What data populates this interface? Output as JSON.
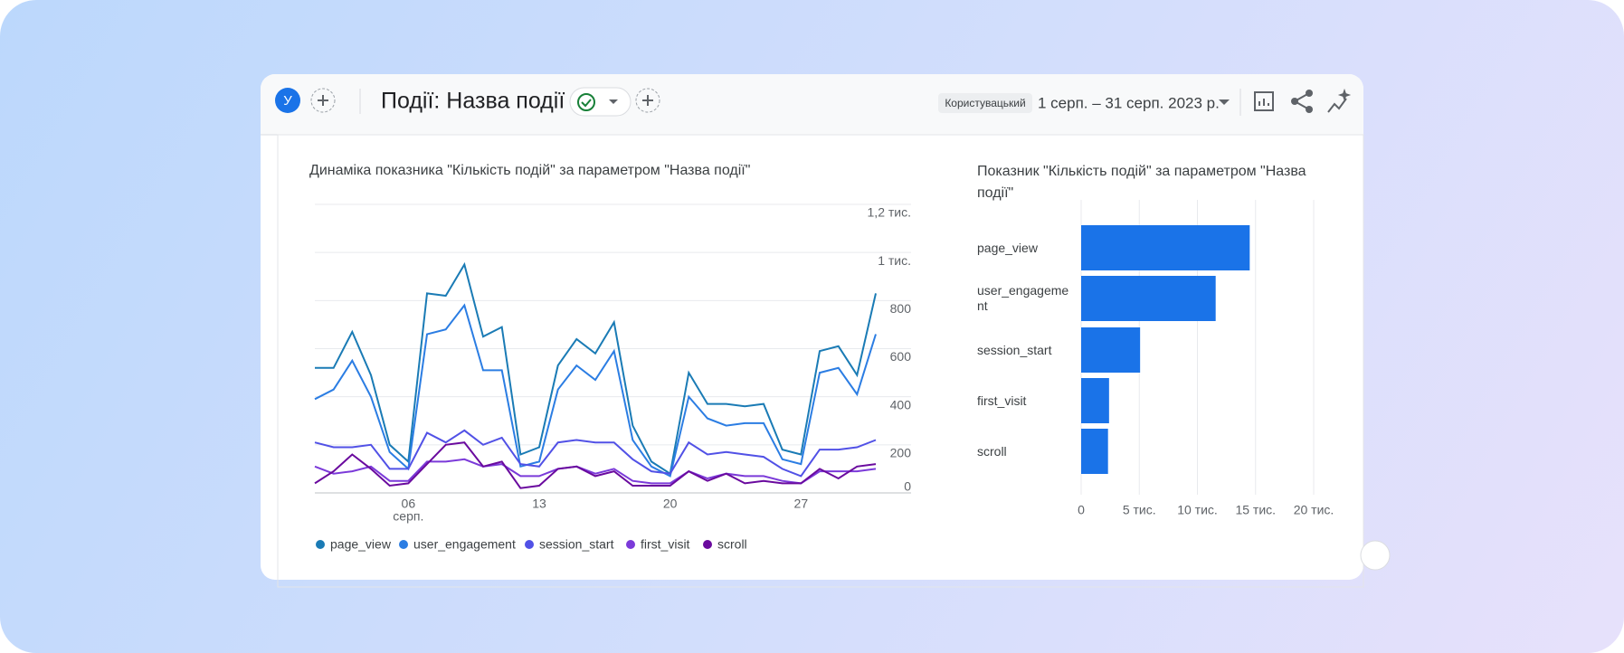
{
  "header": {
    "avatar": "У",
    "title": "Події: Назва події",
    "comparison_chip": "Користувацький",
    "date_range": "1 серп. – 31 серп. 2023 р."
  },
  "chart_data": [
    {
      "type": "line",
      "title": "Динаміка показника \"Кількість подій\" за параметром \"Назва події\"",
      "categories": [
        null,
        null,
        null,
        null,
        null,
        "06",
        null,
        null,
        null,
        null,
        null,
        null,
        "13",
        null,
        null,
        null,
        null,
        null,
        null,
        "20",
        null,
        null,
        null,
        null,
        null,
        null,
        "27",
        null,
        null,
        null,
        null
      ],
      "x_month_label": "серп.",
      "ylim": [
        0,
        1200
      ],
      "yticks": [
        0,
        200,
        400,
        600,
        800,
        {
          "value": 1000,
          "label": "1 тис."
        },
        {
          "value": 1200,
          "label": "1,2 тис."
        }
      ],
      "grid": true,
      "legend": "bottom",
      "series": [
        {
          "name": "page_view",
          "color": "#1a7bb5",
          "values": [
            520,
            520,
            670,
            490,
            200,
            130,
            830,
            820,
            950,
            650,
            690,
            160,
            190,
            530,
            640,
            580,
            710,
            280,
            130,
            80,
            500,
            370,
            370,
            360,
            370,
            180,
            160,
            590,
            610,
            490,
            830
          ]
        },
        {
          "name": "user_engagement",
          "color": "#2b7de3",
          "values": [
            390,
            430,
            550,
            400,
            170,
            100,
            660,
            680,
            780,
            510,
            510,
            110,
            130,
            430,
            530,
            470,
            590,
            220,
            110,
            70,
            400,
            310,
            280,
            290,
            290,
            140,
            120,
            500,
            520,
            410,
            660
          ]
        },
        {
          "name": "session_start",
          "color": "#5151e6",
          "values": [
            210,
            190,
            190,
            200,
            100,
            100,
            250,
            210,
            260,
            200,
            230,
            120,
            110,
            210,
            220,
            210,
            210,
            140,
            90,
            80,
            210,
            160,
            170,
            160,
            150,
            100,
            70,
            180,
            180,
            190,
            220
          ]
        },
        {
          "name": "first_visit",
          "color": "#7b3ad9",
          "values": [
            110,
            80,
            90,
            110,
            50,
            50,
            130,
            130,
            140,
            110,
            120,
            70,
            70,
            100,
            110,
            80,
            100,
            50,
            40,
            40,
            90,
            60,
            80,
            70,
            70,
            50,
            40,
            90,
            90,
            90,
            100
          ]
        },
        {
          "name": "scroll",
          "color": "#6a0a9e",
          "values": [
            40,
            90,
            160,
            100,
            30,
            40,
            120,
            200,
            210,
            110,
            130,
            20,
            30,
            100,
            110,
            70,
            90,
            30,
            30,
            30,
            90,
            50,
            80,
            40,
            50,
            40,
            40,
            100,
            60,
            110,
            120
          ]
        }
      ]
    },
    {
      "type": "hbar",
      "title": "Показник \"Кількість подій\" за параметром \"Назва події\"",
      "categories": [
        "page_view",
        "user_engagement",
        "session_start",
        "first_visit",
        "scroll"
      ],
      "values": [
        14500,
        11570,
        5070,
        2400,
        2310
      ],
      "color": "#1a73e8",
      "xlim": [
        0,
        20000
      ],
      "xticks": [
        0,
        {
          "value": 5000,
          "label": "5 тис."
        },
        {
          "value": 10000,
          "label": "10 тис."
        },
        {
          "value": 15000,
          "label": "15 тис."
        },
        {
          "value": 20000,
          "label": "20 тис."
        }
      ],
      "grid": true
    }
  ]
}
